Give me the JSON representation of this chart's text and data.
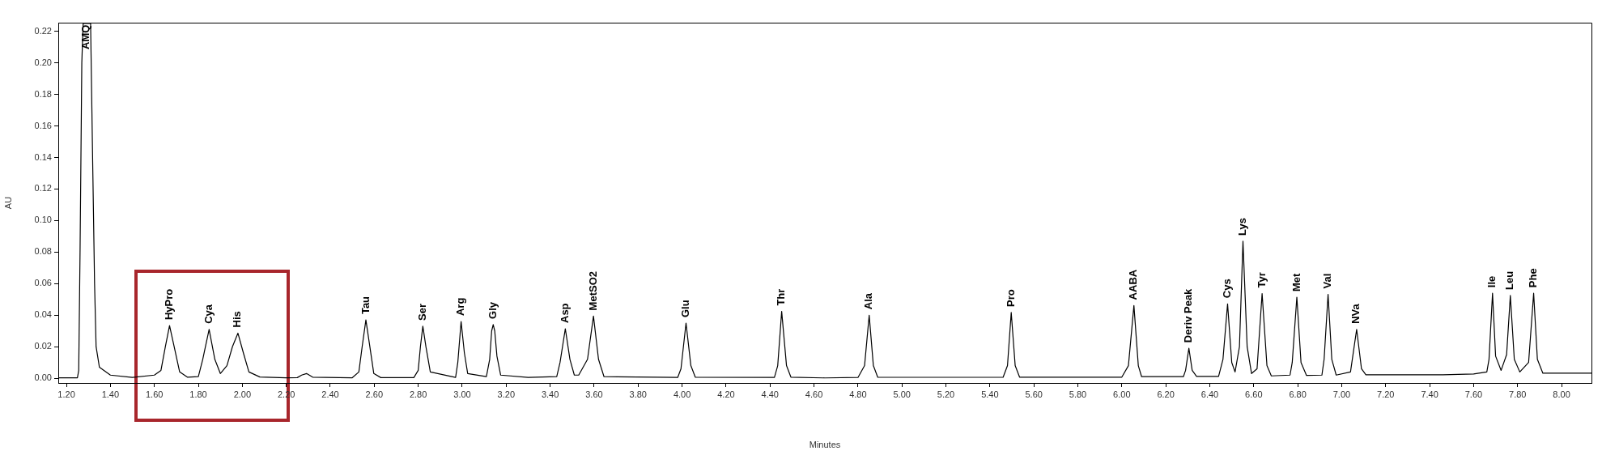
{
  "chart_data": {
    "type": "line",
    "xlabel": "Minutes",
    "ylabel": "AU",
    "color": "#000000",
    "marker": "none",
    "line_style": "solid",
    "grid": false,
    "legend": false,
    "xlim": [
      1.163,
      8.136
    ],
    "ylim": [
      -0.003,
      0.2255
    ],
    "xticks": [
      {
        "value": 1.2,
        "label": "1.20"
      },
      {
        "value": 1.4,
        "label": "1.40"
      },
      {
        "value": 1.6,
        "label": "1.60"
      },
      {
        "value": 1.8,
        "label": "1.80"
      },
      {
        "value": 2.0,
        "label": "2.00"
      },
      {
        "value": 2.2,
        "label": "2.20"
      },
      {
        "value": 2.4,
        "label": "2.40"
      },
      {
        "value": 2.6,
        "label": "2.60"
      },
      {
        "value": 2.8,
        "label": "2.80"
      },
      {
        "value": 3.0,
        "label": "3.00"
      },
      {
        "value": 3.2,
        "label": "3.20"
      },
      {
        "value": 3.4,
        "label": "3.40"
      },
      {
        "value": 3.6,
        "label": "3.60"
      },
      {
        "value": 3.8,
        "label": "3.80"
      },
      {
        "value": 4.0,
        "label": "4.00"
      },
      {
        "value": 4.2,
        "label": "4.20"
      },
      {
        "value": 4.4,
        "label": "4.40"
      },
      {
        "value": 4.6,
        "label": "4.60"
      },
      {
        "value": 4.8,
        "label": "4.80"
      },
      {
        "value": 5.0,
        "label": "5.00"
      },
      {
        "value": 5.2,
        "label": "5.20"
      },
      {
        "value": 5.4,
        "label": "5.40"
      },
      {
        "value": 5.6,
        "label": "5.60"
      },
      {
        "value": 5.8,
        "label": "5.80"
      },
      {
        "value": 6.0,
        "label": "6.00"
      },
      {
        "value": 6.2,
        "label": "6.20"
      },
      {
        "value": 6.4,
        "label": "6.40"
      },
      {
        "value": 6.6,
        "label": "6.60"
      },
      {
        "value": 6.8,
        "label": "6.80"
      },
      {
        "value": 7.0,
        "label": "7.00"
      },
      {
        "value": 7.2,
        "label": "7.20"
      },
      {
        "value": 7.4,
        "label": "7.40"
      },
      {
        "value": 7.6,
        "label": "7.60"
      },
      {
        "value": 7.8,
        "label": "7.80"
      },
      {
        "value": 8.0,
        "label": "8.00"
      }
    ],
    "yticks": [
      {
        "value": 0,
        "label": "0.00"
      },
      {
        "value": 0.02,
        "label": "0.02"
      },
      {
        "value": 0.04,
        "label": "0.04"
      },
      {
        "value": 0.06,
        "label": "0.06"
      },
      {
        "value": 0.08,
        "label": "0.08"
      },
      {
        "value": 0.1,
        "label": "0.10"
      },
      {
        "value": 0.12,
        "label": "0.12"
      },
      {
        "value": 0.14,
        "label": "0.14"
      },
      {
        "value": 0.16,
        "label": "0.16"
      },
      {
        "value": 0.18,
        "label": "0.18"
      },
      {
        "value": 0.2,
        "label": "0.20"
      },
      {
        "value": 0.22,
        "label": "0.22"
      }
    ],
    "x": [
      1.163,
      1.25,
      1.256,
      1.262,
      1.27,
      1.276,
      1.31,
      1.318,
      1.328,
      1.335,
      1.35,
      1.4,
      1.5,
      1.6,
      1.63,
      1.65,
      1.669,
      1.69,
      1.715,
      1.75,
      1.8,
      1.82,
      1.849,
      1.875,
      1.9,
      1.93,
      1.955,
      1.98,
      2.005,
      2.03,
      2.08,
      2.2,
      2.25,
      2.27,
      2.292,
      2.32,
      2.5,
      2.53,
      2.545,
      2.562,
      2.58,
      2.598,
      2.63,
      2.78,
      2.8,
      2.81,
      2.821,
      2.835,
      2.855,
      2.97,
      2.98,
      2.995,
      3.01,
      3.025,
      3.11,
      3.125,
      3.134,
      3.141,
      3.148,
      3.158,
      3.175,
      3.3,
      3.43,
      3.445,
      3.469,
      3.49,
      3.51,
      3.53,
      3.57,
      3.597,
      3.62,
      3.645,
      3.98,
      3.995,
      4.018,
      4.04,
      4.06,
      4.42,
      4.435,
      4.453,
      4.475,
      4.495,
      4.65,
      4.8,
      4.83,
      4.851,
      4.87,
      4.89,
      5.46,
      5.48,
      5.497,
      5.515,
      5.535,
      6.0,
      6.03,
      6.055,
      6.075,
      6.09,
      6.28,
      6.29,
      6.305,
      6.32,
      6.34,
      6.44,
      6.46,
      6.481,
      6.5,
      6.515,
      6.535,
      6.551,
      6.57,
      6.59,
      6.615,
      6.638,
      6.66,
      6.68,
      6.765,
      6.775,
      6.796,
      6.815,
      6.84,
      6.91,
      6.92,
      6.938,
      6.955,
      6.975,
      7.04,
      7.068,
      7.09,
      7.11,
      7.46,
      7.6,
      7.66,
      7.67,
      7.686,
      7.7,
      7.725,
      7.75,
      7.767,
      7.785,
      7.81,
      7.85,
      7.873,
      7.89,
      7.915,
      8.136
    ],
    "values": [
      0.0003,
      0.0003,
      0.005,
      0.08,
      0.2,
      0.225,
      0.225,
      0.15,
      0.06,
      0.02,
      0.007,
      0.002,
      0.0005,
      0.002,
      0.005,
      0.02,
      0.0334,
      0.02,
      0.004,
      0.0007,
      0.001,
      0.012,
      0.031,
      0.012,
      0.003,
      0.008,
      0.02,
      0.0286,
      0.016,
      0.004,
      0.0008,
      0.0003,
      0.0004,
      0.002,
      0.003,
      0.0007,
      0.0003,
      0.004,
      0.02,
      0.037,
      0.02,
      0.003,
      0.0004,
      0.0004,
      0.005,
      0.02,
      0.033,
      0.02,
      0.004,
      0.0005,
      0.01,
      0.036,
      0.016,
      0.003,
      0.001,
      0.012,
      0.03,
      0.034,
      0.03,
      0.014,
      0.002,
      0.0005,
      0.001,
      0.01,
      0.0314,
      0.012,
      0.002,
      0.002,
      0.012,
      0.0394,
      0.012,
      0.001,
      0.0005,
      0.006,
      0.035,
      0.008,
      0.0007,
      0.0005,
      0.008,
      0.0424,
      0.008,
      0.0007,
      0.0002,
      0.0005,
      0.008,
      0.04,
      0.008,
      0.0006,
      0.0006,
      0.008,
      0.0417,
      0.008,
      0.0007,
      0.0007,
      0.008,
      0.0461,
      0.008,
      0.001,
      0.001,
      0.005,
      0.019,
      0.005,
      0.0012,
      0.0012,
      0.012,
      0.0472,
      0.01,
      0.004,
      0.02,
      0.0869,
      0.02,
      0.003,
      0.006,
      0.0537,
      0.008,
      0.0015,
      0.002,
      0.01,
      0.0514,
      0.01,
      0.0018,
      0.002,
      0.012,
      0.0532,
      0.012,
      0.002,
      0.004,
      0.031,
      0.006,
      0.0022,
      0.0022,
      0.0027,
      0.004,
      0.012,
      0.0539,
      0.014,
      0.005,
      0.015,
      0.0525,
      0.012,
      0.004,
      0.01,
      0.0539,
      0.012,
      0.0032,
      0.0032
    ],
    "annotations": [
      {
        "text": "AMQ",
        "x": 1.29,
        "y": 0.205
      },
      {
        "text": "HyPro",
        "x": 1.669,
        "y": 0.0334
      },
      {
        "text": "Cya",
        "x": 1.849,
        "y": 0.031
      },
      {
        "text": "His",
        "x": 1.98,
        "y": 0.0286
      },
      {
        "text": "Tau",
        "x": 2.562,
        "y": 0.037
      },
      {
        "text": "Ser",
        "x": 2.821,
        "y": 0.033
      },
      {
        "text": "Arg",
        "x": 2.995,
        "y": 0.036
      },
      {
        "text": "Gly",
        "x": 3.141,
        "y": 0.034
      },
      {
        "text": "Asp",
        "x": 3.469,
        "y": 0.0314
      },
      {
        "text": "MetSO2",
        "x": 3.597,
        "y": 0.0394
      },
      {
        "text": "Glu",
        "x": 4.018,
        "y": 0.035
      },
      {
        "text": "Thr",
        "x": 4.453,
        "y": 0.0424
      },
      {
        "text": "Ala",
        "x": 4.851,
        "y": 0.04
      },
      {
        "text": "Pro",
        "x": 5.497,
        "y": 0.0417
      },
      {
        "text": "AABA",
        "x": 6.055,
        "y": 0.0461
      },
      {
        "text": "Deriv Peak",
        "x": 6.305,
        "y": 0.019
      },
      {
        "text": "Cys",
        "x": 6.481,
        "y": 0.0472
      },
      {
        "text": "Lys",
        "x": 6.551,
        "y": 0.0869
      },
      {
        "text": "Tyr",
        "x": 6.638,
        "y": 0.0537
      },
      {
        "text": "Met",
        "x": 6.796,
        "y": 0.0514
      },
      {
        "text": "Val",
        "x": 6.938,
        "y": 0.0532
      },
      {
        "text": "NVa",
        "x": 7.068,
        "y": 0.031
      },
      {
        "text": "Ile",
        "x": 7.686,
        "y": 0.0539
      },
      {
        "text": "Leu",
        "x": 7.767,
        "y": 0.0525
      },
      {
        "text": "Phe",
        "x": 7.873,
        "y": 0.0539
      }
    ]
  }
}
